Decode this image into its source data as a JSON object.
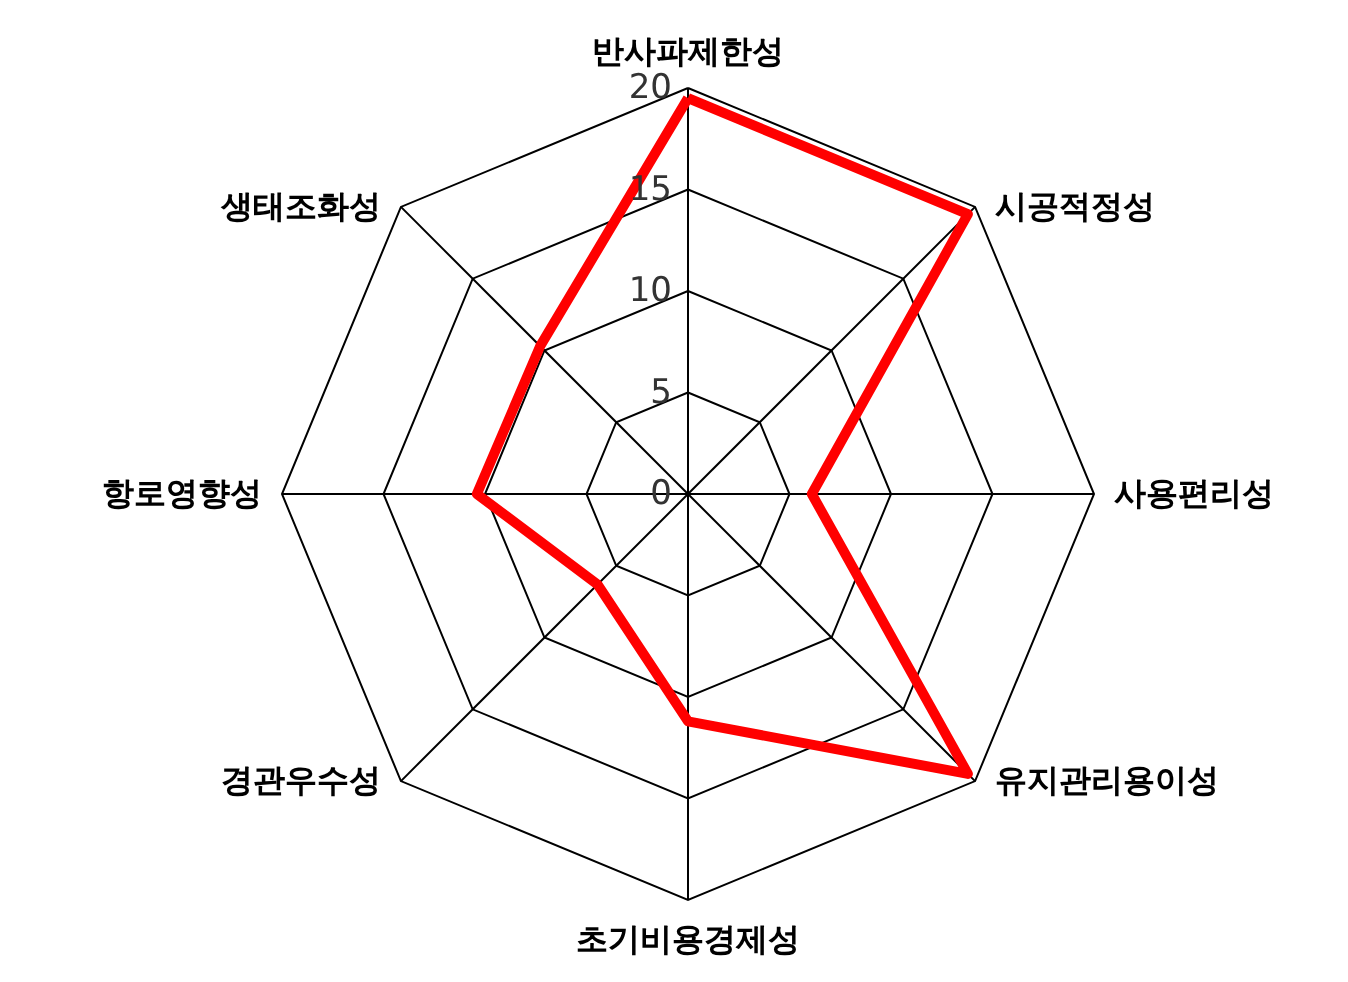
{
  "chart_data": {
    "type": "radar",
    "categories": [
      "반사파제한성",
      "시공적정성",
      "사용편리성",
      "유지관리용이성",
      "초기비용경제성",
      "경관우수성",
      "항로영향성",
      "생태조화성"
    ],
    "series": [
      {
        "color": "#ff0000",
        "values": [
          19.5,
          19.5,
          6.1,
          19.5,
          11.2,
          6.3,
          10.4,
          10.3
        ]
      }
    ],
    "ylim": [
      0,
      20
    ],
    "yticks": [
      0,
      5,
      10,
      15,
      20
    ],
    "grid": true
  }
}
